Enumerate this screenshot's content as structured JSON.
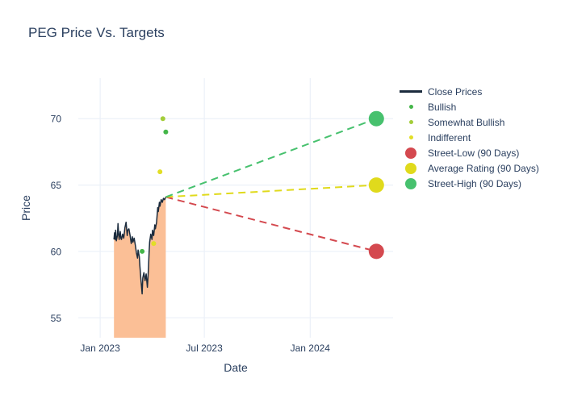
{
  "title": "PEG Price Vs. Targets",
  "colors": {
    "title_text": "#2a3f5f",
    "axis_text": "#2a3f5f",
    "grid": "#ebf0f8",
    "background": "#ffffff",
    "close_line": "#1b2b3d",
    "close_fill": "#fbbf96",
    "bullish": "#44b649",
    "somewhat_bullish": "#a3cd39",
    "indifferent": "#e2de26",
    "street_low": "#d4494f",
    "average_rating": "#e0da1c",
    "street_high": "#47c16e"
  },
  "legend": {
    "items": [
      {
        "label": "Close Prices",
        "marker": "line",
        "color": "#1b2b3d"
      },
      {
        "label": "Bullish",
        "marker": "dot-small",
        "color": "#44b649"
      },
      {
        "label": "Somewhat Bullish",
        "marker": "dot-small",
        "color": "#a3cd39"
      },
      {
        "label": "Indifferent",
        "marker": "dot-small",
        "color": "#e2de26"
      },
      {
        "label": "Street-Low (90 Days)",
        "marker": "dot-big",
        "color": "#d4494f"
      },
      {
        "label": "Average Rating (90 Days)",
        "marker": "dot-big",
        "color": "#e0da1c"
      },
      {
        "label": "Street-High (90 Days)",
        "marker": "dot-big",
        "color": "#47c16e"
      }
    ]
  },
  "chart_data": {
    "type": "line",
    "title": "PEG Price Vs. Targets",
    "xlabel": "Date",
    "ylabel": "Price",
    "x_unit": "days since Jan 1 2023",
    "x_range": [
      -38,
      509
    ],
    "y_range": [
      53.5,
      73.05
    ],
    "x_ticks": [
      {
        "pos": 0,
        "label": "Jan 2023"
      },
      {
        "pos": 181,
        "label": "Jul 2023"
      },
      {
        "pos": 365,
        "label": "Jan 2024"
      }
    ],
    "y_ticks": [
      55,
      60,
      65,
      70
    ],
    "grid": true,
    "legend_position": "right",
    "series": [
      {
        "name": "Close Prices",
        "type": "line",
        "color": "#1b2b3d",
        "fill_color": "#fbbf96",
        "fill": "tozeroy",
        "points": [
          [
            24,
            60.9
          ],
          [
            25,
            61.4
          ],
          [
            26,
            60.9
          ],
          [
            27,
            61.6
          ],
          [
            28,
            60.8
          ],
          [
            30,
            61.2
          ],
          [
            31,
            62.1
          ],
          [
            32,
            61.4
          ],
          [
            33,
            60.9
          ],
          [
            35,
            61.5
          ],
          [
            36,
            61.0
          ],
          [
            37,
            60.9
          ],
          [
            39,
            61.3
          ],
          [
            41,
            61.0
          ],
          [
            43,
            61.8
          ],
          [
            45,
            62.2
          ],
          [
            47,
            61.2
          ],
          [
            48,
            61.6
          ],
          [
            50,
            61.7
          ],
          [
            52,
            61.2
          ],
          [
            54,
            60.6
          ],
          [
            56,
            61.1
          ],
          [
            57,
            60.7
          ],
          [
            59,
            61.0
          ],
          [
            61,
            60.5
          ],
          [
            63,
            59.9
          ],
          [
            65,
            59.5
          ],
          [
            66,
            60.1
          ],
          [
            68,
            59.6
          ],
          [
            69,
            58.9
          ],
          [
            71,
            57.8
          ],
          [
            73,
            56.8
          ],
          [
            74,
            58.0
          ],
          [
            76,
            58.4
          ],
          [
            78,
            57.8
          ],
          [
            80,
            58.3
          ],
          [
            82,
            57.3
          ],
          [
            83,
            58.0
          ],
          [
            84,
            58.8
          ],
          [
            85,
            59.9
          ],
          [
            86,
            60.7
          ],
          [
            88,
            61.3
          ],
          [
            90,
            60.9
          ],
          [
            91,
            61.6
          ],
          [
            93,
            61.2
          ],
          [
            95,
            62.0
          ],
          [
            96,
            61.7
          ],
          [
            98,
            62.2
          ],
          [
            100,
            63.3
          ],
          [
            101,
            63.0
          ],
          [
            103,
            63.7
          ],
          [
            104,
            63.4
          ],
          [
            106,
            63.9
          ],
          [
            108,
            63.7
          ],
          [
            110,
            64.0
          ],
          [
            112,
            63.9
          ],
          [
            114,
            64.1
          ]
        ]
      },
      {
        "name": "Bullish",
        "type": "scatter",
        "color": "#44b649",
        "points": [
          [
            73,
            60.0
          ],
          [
            114,
            69.0
          ]
        ]
      },
      {
        "name": "Somewhat Bullish",
        "type": "scatter",
        "color": "#a3cd39",
        "points": [
          [
            109,
            70.0
          ]
        ]
      },
      {
        "name": "Indifferent",
        "type": "scatter",
        "color": "#e2de26",
        "points": [
          [
            93,
            60.6
          ],
          [
            104,
            66.0
          ]
        ]
      }
    ],
    "targets": [
      {
        "name": "Street-Low (90 Days)",
        "color": "#d4494f",
        "from": [
          114,
          64.1
        ],
        "to": [
          480,
          60.0
        ]
      },
      {
        "name": "Average Rating (90 Days)",
        "color": "#e0da1c",
        "from": [
          114,
          64.1
        ],
        "to": [
          480,
          65.0
        ]
      },
      {
        "name": "Street-High (90 Days)",
        "color": "#47c16e",
        "from": [
          114,
          64.1
        ],
        "to": [
          480,
          70.0
        ]
      }
    ]
  }
}
